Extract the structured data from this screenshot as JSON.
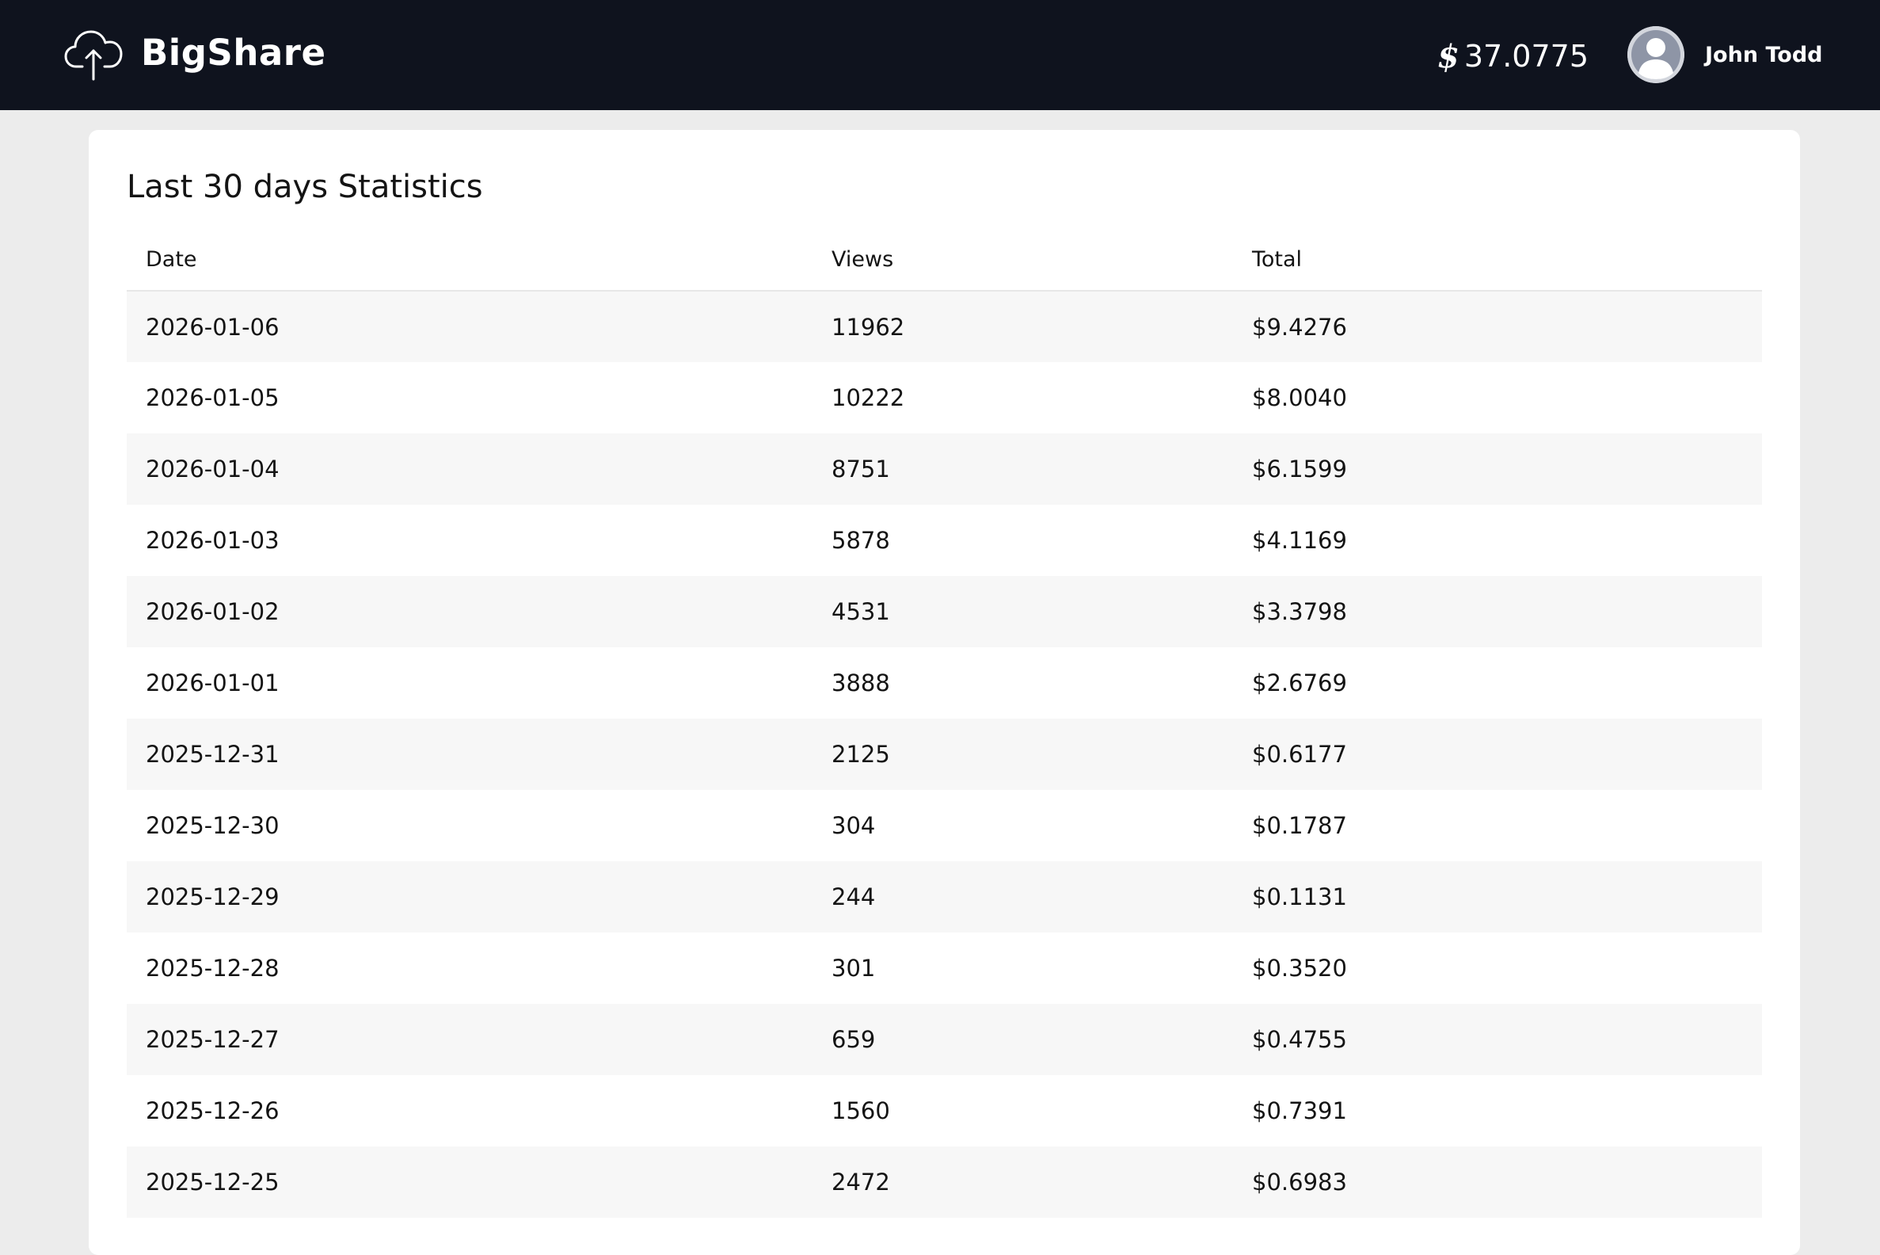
{
  "header": {
    "brand": "BigShare",
    "logo_icon": "cloud-upload-icon",
    "balance_symbol": "$",
    "balance_value": "37.0775",
    "user_name": "John Todd",
    "avatar_icon": "user-avatar-icon",
    "background_color": "#0f131e"
  },
  "stats": {
    "title": "Last 30 days Statistics",
    "columns": {
      "date": "Date",
      "views": "Views",
      "total": "Total"
    },
    "rows": [
      {
        "date": "2026-01-06",
        "views": "11962",
        "total": "$9.4276"
      },
      {
        "date": "2026-01-05",
        "views": "10222",
        "total": "$8.0040"
      },
      {
        "date": "2026-01-04",
        "views": "8751",
        "total": "$6.1599"
      },
      {
        "date": "2026-01-03",
        "views": "5878",
        "total": "$4.1169"
      },
      {
        "date": "2026-01-02",
        "views": "4531",
        "total": "$3.3798"
      },
      {
        "date": "2026-01-01",
        "views": "3888",
        "total": "$2.6769"
      },
      {
        "date": "2025-12-31",
        "views": "2125",
        "total": "$0.6177"
      },
      {
        "date": "2025-12-30",
        "views": "304",
        "total": "$0.1787"
      },
      {
        "date": "2025-12-29",
        "views": "244",
        "total": "$0.1131"
      },
      {
        "date": "2025-12-28",
        "views": "301",
        "total": "$0.3520"
      },
      {
        "date": "2025-12-27",
        "views": "659",
        "total": "$0.4755"
      },
      {
        "date": "2025-12-26",
        "views": "1560",
        "total": "$0.7391"
      },
      {
        "date": "2025-12-25",
        "views": "2472",
        "total": "$0.6983"
      }
    ]
  }
}
